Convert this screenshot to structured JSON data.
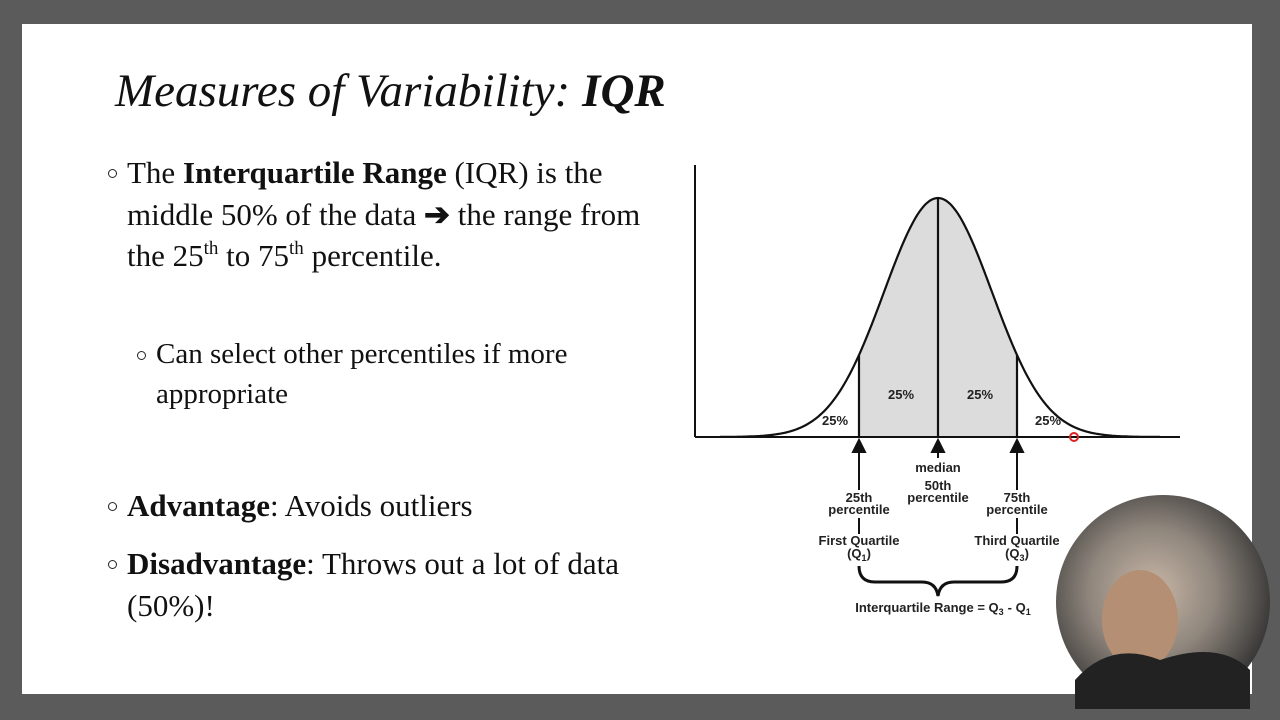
{
  "title": {
    "regular": "Measures of Variability:",
    "bold": "IQR"
  },
  "bullets": [
    [
      "The",
      "Interquartile Range",
      "(IQR) is the middle 50% of the data",
      "➔",
      "the range from the 25",
      "th",
      "to 75",
      "th",
      "percentile."
    ],
    [
      "Can select other percentiles if more appropriate"
    ],
    [
      "Advantage",
      ": Avoids outliers"
    ],
    [
      "Disadvantage",
      ": Throws out a lot of data (50%)!"
    ]
  ],
  "diagram": {
    "regions": [
      "25%",
      "25%",
      "25%",
      "25%"
    ],
    "markers": [
      {
        "lines": [
          "25th",
          "percentile"
        ],
        "quartile": [
          "First Quartile",
          "(Q",
          "1",
          ")"
        ]
      },
      {
        "lines": [
          "median",
          "50th",
          "percentile"
        ]
      },
      {
        "lines": [
          "75th",
          "percentile"
        ],
        "quartile": [
          "Third Quartile",
          "(Q",
          "3",
          ")"
        ]
      }
    ],
    "formula": [
      "Interquartile Range = Q",
      "3",
      "- Q",
      "1"
    ]
  }
}
